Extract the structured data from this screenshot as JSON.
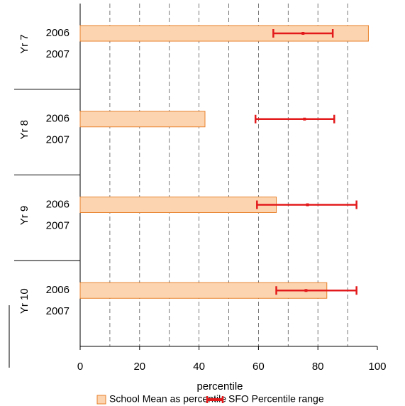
{
  "chart_data": {
    "type": "bar",
    "orientation": "horizontal",
    "groups": [
      "Yr 7",
      "Yr 8",
      "Yr 9",
      "Yr 10"
    ],
    "categories": [
      "2006",
      "2007",
      "2006",
      "2007",
      "2006",
      "2007",
      "2006",
      "2007"
    ],
    "series": [
      {
        "name": "School Mean as percentile",
        "color": "#fcd5b0",
        "edge_color": "#e8812d",
        "values": [
          97,
          null,
          42,
          null,
          66,
          null,
          83,
          null
        ]
      },
      {
        "name": "SFO Percentile range",
        "color": "#e31a1c",
        "kind": "range",
        "values": [
          75,
          null,
          75.5,
          null,
          76.5,
          null,
          76,
          null
        ],
        "low": [
          65,
          null,
          59,
          null,
          59.5,
          null,
          66,
          null
        ],
        "high": [
          85,
          null,
          85.5,
          null,
          93,
          null,
          93,
          null
        ]
      }
    ],
    "xlabel": "percentile",
    "xlim": [
      0,
      100
    ],
    "xticks": [
      0,
      20,
      40,
      60,
      80,
      100
    ],
    "grid": true,
    "grid_ticks": [
      10,
      20,
      30,
      40,
      50,
      60,
      70,
      80,
      90
    ],
    "legend": "bottom"
  }
}
